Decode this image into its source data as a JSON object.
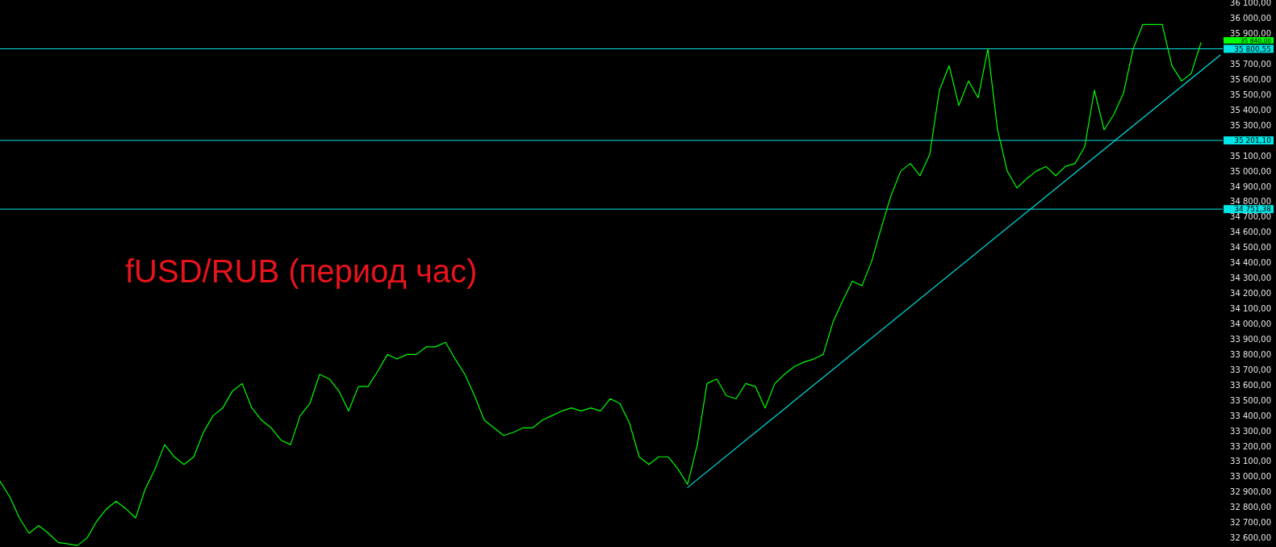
{
  "chart_data": {
    "type": "line",
    "title": "fUSD/RUB (период час)",
    "categories": [
      null,
      null,
      null,
      null,
      null,
      null,
      null,
      null,
      null,
      null,
      null,
      null,
      null,
      null,
      null,
      null,
      null,
      null,
      null,
      null,
      null,
      null,
      null,
      null,
      null,
      null,
      null,
      null,
      null,
      null,
      null,
      null,
      null,
      null,
      null,
      null,
      null,
      null,
      null,
      null,
      null,
      null,
      null,
      null,
      null,
      null,
      null,
      null,
      null,
      null,
      null,
      null,
      null,
      null,
      null,
      null,
      null,
      null,
      null,
      null,
      null,
      null,
      null,
      null,
      null,
      null,
      null,
      null,
      null,
      null,
      null,
      null,
      null,
      null,
      null,
      null,
      null,
      null,
      null,
      null,
      null,
      null,
      null,
      null,
      null,
      null,
      null,
      null,
      null,
      null,
      null,
      null,
      null,
      null,
      null,
      null,
      null,
      null,
      null,
      null,
      null,
      null,
      null,
      null,
      null,
      null,
      null,
      null,
      null,
      null,
      null,
      null,
      null,
      null,
      null,
      null,
      null,
      null,
      null,
      null,
      null,
      null,
      null,
      null,
      null,
      null,
      null
    ],
    "tick_labels": "y",
    "series": [
      {
        "color": "#00ff00",
        "values": [
          32970,
          32870,
          32730,
          32630,
          32680,
          32630,
          32570,
          32560,
          32550,
          32600,
          32710,
          32790,
          32840,
          32790,
          32730,
          32920,
          33050,
          33210,
          33130,
          33080,
          33130,
          33290,
          33400,
          33450,
          33560,
          33610,
          33450,
          33370,
          33320,
          33240,
          33210,
          33400,
          33480,
          33670,
          33640,
          33560,
          33430,
          33590,
          33590,
          33690,
          33800,
          33770,
          33800,
          33800,
          33850,
          33850,
          33880,
          33770,
          33670,
          33530,
          33370,
          33320,
          33270,
          33290,
          33320,
          33320,
          33370,
          33400,
          33430,
          33450,
          33430,
          33450,
          33430,
          33510,
          33480,
          33350,
          33130,
          33080,
          33130,
          33130,
          33050,
          32950,
          33210,
          33610,
          33640,
          33530,
          33510,
          33610,
          33590,
          33450,
          33610,
          33670,
          33720,
          33750,
          33770,
          33800,
          34010,
          34150,
          34280,
          34250,
          34410,
          34630,
          34840,
          35000,
          35050,
          34970,
          35110,
          35530,
          35690,
          35430,
          35590,
          35480,
          35800,
          35270,
          35000,
          34890,
          34950,
          35000,
          35030,
          34970,
          35030,
          35050,
          35160,
          35530,
          35270,
          35370,
          35510,
          35800,
          35960,
          35960,
          35960,
          35690,
          35590,
          35640,
          35840,
          null,
          null
        ]
      },
      {
        "type": "line",
        "color": "#00e5e5",
        "values": [
          null,
          null,
          null,
          null,
          null,
          null,
          null,
          null,
          null,
          null,
          null,
          null,
          null,
          null,
          null,
          null,
          null,
          null,
          null,
          null,
          null,
          null,
          null,
          null,
          null,
          null,
          null,
          null,
          null,
          null,
          null,
          null,
          null,
          null,
          null,
          null,
          null,
          null,
          null,
          null,
          null,
          null,
          null,
          null,
          null,
          null,
          null,
          null,
          null,
          null,
          null,
          null,
          null,
          null,
          null,
          null,
          null,
          null,
          null,
          null,
          null,
          null,
          null,
          null,
          null,
          null,
          null,
          null,
          null,
          null,
          null,
          32930,
          null,
          null,
          null,
          null,
          null,
          null,
          null,
          null,
          null,
          null,
          null,
          null,
          null,
          null,
          null,
          null,
          null,
          null,
          null,
          null,
          null,
          null,
          null,
          null,
          null,
          null,
          null,
          null,
          null,
          null,
          null,
          null,
          null,
          null,
          null,
          null,
          null,
          null,
          null,
          null,
          null,
          null,
          null,
          null,
          null,
          null,
          null,
          null,
          null,
          null,
          null,
          null,
          null,
          null,
          35760
        ]
      }
    ],
    "ylim": [
      32540,
      36120
    ],
    "yticks": [
      {
        "value": 32600,
        "label": "32 600,00"
      },
      {
        "value": 32700,
        "label": "32 700,00"
      },
      {
        "value": 32800,
        "label": "32 800,00"
      },
      {
        "value": 32900,
        "label": "32 900,00"
      },
      {
        "value": 33000,
        "label": "33 000,00"
      },
      {
        "value": 33100,
        "label": "33 100,00"
      },
      {
        "value": 33200,
        "label": "33 200,00"
      },
      {
        "value": 33300,
        "label": "33 300,00"
      },
      {
        "value": 33400,
        "label": "33 400,00"
      },
      {
        "value": 33500,
        "label": "33 500,00"
      },
      {
        "value": 33600,
        "label": "33 600,00"
      },
      {
        "value": 33700,
        "label": "33 700,00"
      },
      {
        "value": 33800,
        "label": "33 800,00"
      },
      {
        "value": 33900,
        "label": "33 900,00"
      },
      {
        "value": 34000,
        "label": "34 000,00"
      },
      {
        "value": 34100,
        "label": "34 100,00"
      },
      {
        "value": 34200,
        "label": "34 200,00"
      },
      {
        "value": 34300,
        "label": "34 300,00"
      },
      {
        "value": 34400,
        "label": "34 400,00"
      },
      {
        "value": 34500,
        "label": "34 500,00"
      },
      {
        "value": 34600,
        "label": "34 600,00"
      },
      {
        "value": 34700,
        "label": "34 700,00"
      },
      {
        "value": 34800,
        "label": "34 800,00"
      },
      {
        "value": 34900,
        "label": "34 900,00"
      },
      {
        "value": 35000,
        "label": "35 000,00"
      },
      {
        "value": 35100,
        "label": "35 100,00"
      },
      {
        "value": 35300,
        "label": "35 300,00"
      },
      {
        "value": 35400,
        "label": "35 400,00"
      },
      {
        "value": 35500,
        "label": "35 500,00"
      },
      {
        "value": 35600,
        "label": "35 600,00"
      },
      {
        "value": 35700,
        "label": "35 700,00"
      },
      {
        "value": 35900,
        "label": "35 900,00"
      },
      {
        "value": 36000,
        "label": "36 000,00"
      },
      {
        "value": 36100,
        "label": "36 100,00"
      }
    ],
    "ref_lines": [
      {
        "axis": "y",
        "value": 35800.55,
        "label": "35 800,55",
        "color": "#00e5e5"
      },
      {
        "axis": "y",
        "value": 35201.1,
        "label": "35 201,10",
        "color": "#00e5e5"
      },
      {
        "axis": "y",
        "value": 34751.38,
        "label": "34 751,38",
        "color": "#00e5e5"
      }
    ],
    "annotations": [
      "35 840,00"
    ]
  }
}
